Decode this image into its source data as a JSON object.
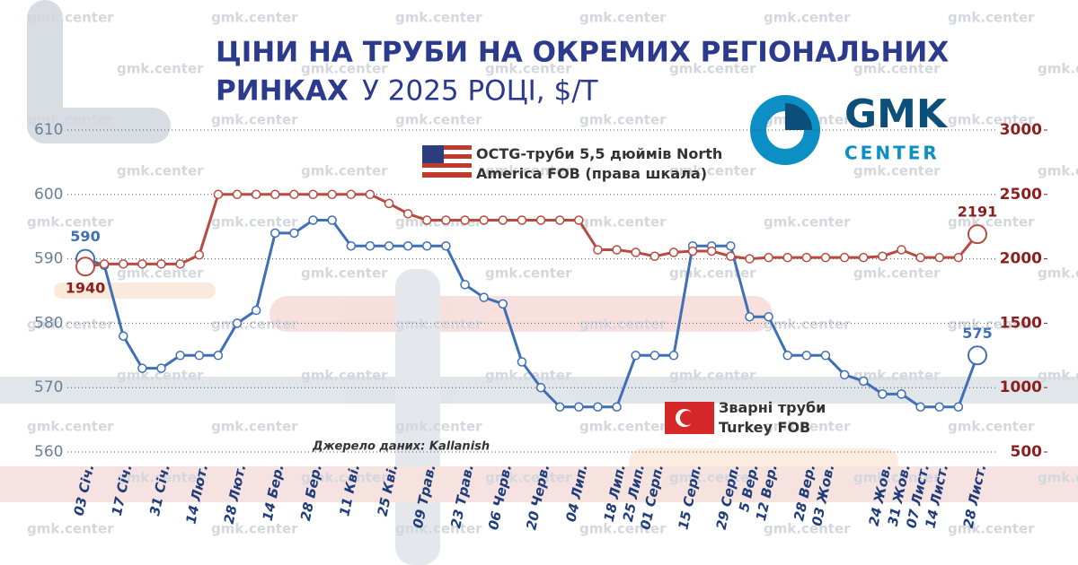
{
  "header": {
    "title": "ЦІНИ НА ТРУБИ НА ОКРЕМИХ РЕГІОНАЛЬНИХ",
    "title_line2_bold": "РИНКАХ",
    "title_line2_rest": "У 2025  РОЦІ, $/Т",
    "logo_main": "GMK",
    "logo_sub": "CENTER",
    "watermark": "gmk.center"
  },
  "chart_data": {
    "type": "line",
    "source": "Джерело даних: Kallanish",
    "categories": [
      "03 Січ.",
      null,
      "17 Січ.",
      null,
      "31 Січ.",
      null,
      "14 Лют.",
      null,
      "28 Лют.",
      null,
      "14 Бер.",
      null,
      "28 Бер.",
      null,
      "11 Кві.",
      null,
      "25 Кві.",
      null,
      "09 Трав.",
      null,
      "23 Трав.",
      null,
      "06 Черв.",
      null,
      "20 Черв.",
      null,
      "04 Лип.",
      null,
      "18 Лип.",
      "25 Лип.",
      "01 Серп.",
      null,
      "15 Серп.",
      null,
      "29 Серп.",
      "5 Вер.",
      "12 Вер.",
      null,
      "28 Вер.",
      "03 Жов.",
      null,
      null,
      "24 Жов.",
      "31 Жов.",
      "07 Лист.",
      "14 Лист.",
      null,
      "28 Лист."
    ],
    "ylim": [
      560,
      610
    ],
    "yticks": [
      560,
      570,
      580,
      590,
      600,
      610
    ],
    "y2lim": [
      500,
      3000
    ],
    "y2ticks": [
      500,
      1000,
      1500,
      2000,
      2500,
      3000
    ],
    "grid": true,
    "series": [
      {
        "name": "Зварні труби Turkey FOB",
        "color": "#3f6fb4",
        "axis": "y",
        "values": [
          590,
          589,
          578,
          573,
          573,
          575,
          575,
          575,
          580,
          582,
          594,
          594,
          596,
          596,
          592,
          592,
          592,
          592,
          592,
          592,
          586,
          584,
          583,
          574,
          570,
          567,
          567,
          567,
          567,
          575,
          575,
          575,
          592,
          592,
          592,
          581,
          581,
          575,
          575,
          575,
          572,
          571,
          569,
          569,
          567,
          567,
          567,
          575
        ]
      },
      {
        "name": "OCTG-труби 5,5 дюймів North America FOB (права шкала)",
        "color": "#b94a40",
        "axis": "y2",
        "values": [
          1940,
          1960,
          1960,
          1960,
          1960,
          1960,
          2030,
          2500,
          2500,
          2500,
          2500,
          2500,
          2500,
          2500,
          2500,
          2500,
          2430,
          2350,
          2300,
          2300,
          2300,
          2300,
          2300,
          2300,
          2300,
          2300,
          2300,
          2070,
          2070,
          2050,
          2020,
          2050,
          2060,
          2060,
          2020,
          2000,
          2010,
          2010,
          2010,
          2010,
          2010,
          2010,
          2020,
          2070,
          2010,
          2010,
          2010,
          2191
        ]
      }
    ]
  }
}
